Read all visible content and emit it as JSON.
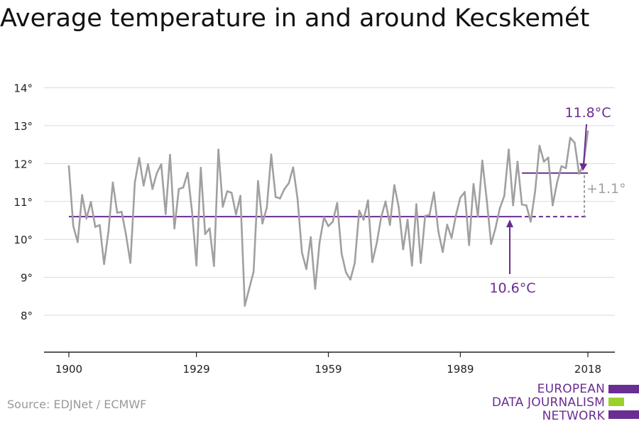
{
  "title": "Average temperature in and around Kecskemét",
  "source": "Source: EDJNet / ECMWF",
  "logo": {
    "line1": "EUROPEAN",
    "line2": "DATA JOURNALISM",
    "line3": "NETWORK"
  },
  "colors": {
    "series": "#a0a0a0",
    "accent": "#6a2d91",
    "green": "#9bd12b",
    "grid": "#d9d9d9",
    "axis": "#222222"
  },
  "chart_data": {
    "type": "line",
    "title": "Average temperature in and around Kecskemét",
    "xlabel": "",
    "ylabel": "",
    "xlim": [
      1900,
      2018
    ],
    "ylim": [
      7,
      14
    ],
    "grid": true,
    "x_ticks": [
      1900,
      1929,
      1959,
      1989,
      2018
    ],
    "y_ticks": [
      {
        "value": 8,
        "label": "8°"
      },
      {
        "value": 9,
        "label": "9°"
      },
      {
        "value": 10,
        "label": "10°"
      },
      {
        "value": 11,
        "label": "11°"
      },
      {
        "value": 12,
        "label": "12°"
      },
      {
        "value": 13,
        "label": "13°"
      },
      {
        "value": 14,
        "label": "14°"
      }
    ],
    "series": [
      {
        "x": [
          1900,
          1901,
          1902,
          1903,
          1904,
          1905,
          1906,
          1907,
          1908,
          1909,
          1910,
          1911,
          1912,
          1913,
          1914,
          1915,
          1916,
          1917,
          1918,
          1919,
          1920,
          1921,
          1922,
          1923,
          1924,
          1925,
          1926,
          1927,
          1928,
          1929,
          1930,
          1931,
          1932,
          1933,
          1934,
          1935,
          1936,
          1937,
          1938,
          1939,
          1940,
          1941,
          1942,
          1943,
          1944,
          1945,
          1946,
          1947,
          1948,
          1949,
          1950,
          1951,
          1952,
          1953,
          1954,
          1955,
          1956,
          1957,
          1958,
          1959,
          1960,
          1961,
          1962,
          1963,
          1964,
          1965,
          1966,
          1967,
          1968,
          1969,
          1970,
          1971,
          1972,
          1973,
          1974,
          1975,
          1976,
          1977,
          1978,
          1979,
          1980,
          1981,
          1982,
          1983,
          1984,
          1985,
          1986,
          1987,
          1988,
          1989,
          1990,
          1991,
          1992,
          1993,
          1994,
          1995,
          1996,
          1997,
          1998,
          1999,
          2000,
          2001,
          2002,
          2003,
          2004,
          2005,
          2006,
          2007,
          2008,
          2009,
          2010,
          2011,
          2012,
          2013,
          2014,
          2015,
          2016,
          2017,
          2018
        ],
        "values": [
          11.93,
          10.35,
          9.93,
          11.17,
          10.55,
          10.99,
          10.33,
          10.38,
          9.35,
          10.22,
          11.5,
          10.7,
          10.73,
          10.12,
          9.38,
          11.5,
          12.15,
          11.42,
          11.98,
          11.33,
          11.75,
          11.98,
          10.67,
          12.23,
          10.29,
          11.33,
          11.37,
          11.76,
          10.73,
          9.31,
          11.89,
          10.14,
          10.29,
          9.3,
          12.37,
          10.86,
          11.27,
          11.23,
          10.66,
          11.15,
          8.25,
          8.7,
          9.15,
          11.54,
          10.42,
          10.84,
          12.24,
          11.12,
          11.08,
          11.33,
          11.48,
          11.9,
          11.07,
          9.65,
          9.22,
          10.06,
          8.7,
          9.92,
          10.58,
          10.35,
          10.47,
          10.96,
          9.63,
          9.13,
          8.94,
          9.38,
          10.76,
          10.52,
          11.03,
          9.4,
          9.9,
          10.58,
          11.0,
          10.38,
          11.43,
          10.85,
          9.74,
          10.52,
          9.31,
          10.93,
          9.38,
          10.62,
          10.65,
          11.24,
          10.21,
          9.67,
          10.39,
          10.04,
          10.64,
          11.1,
          11.25,
          9.85,
          11.46,
          10.6,
          12.08,
          11.05,
          9.88,
          10.3,
          10.83,
          11.15,
          12.37,
          10.9,
          12.05,
          10.92,
          10.9,
          10.47,
          11.27,
          12.47,
          12.05,
          12.16,
          10.9,
          11.5,
          11.93,
          11.88,
          12.68,
          12.55,
          11.73,
          11.97,
          12.85
        ]
      }
    ],
    "annotations": [
      {
        "label": "10.6°C",
        "value": 10.6
      },
      {
        "label": "11.8°C",
        "value": 11.75
      },
      {
        "label": "+1.1°"
      }
    ]
  }
}
